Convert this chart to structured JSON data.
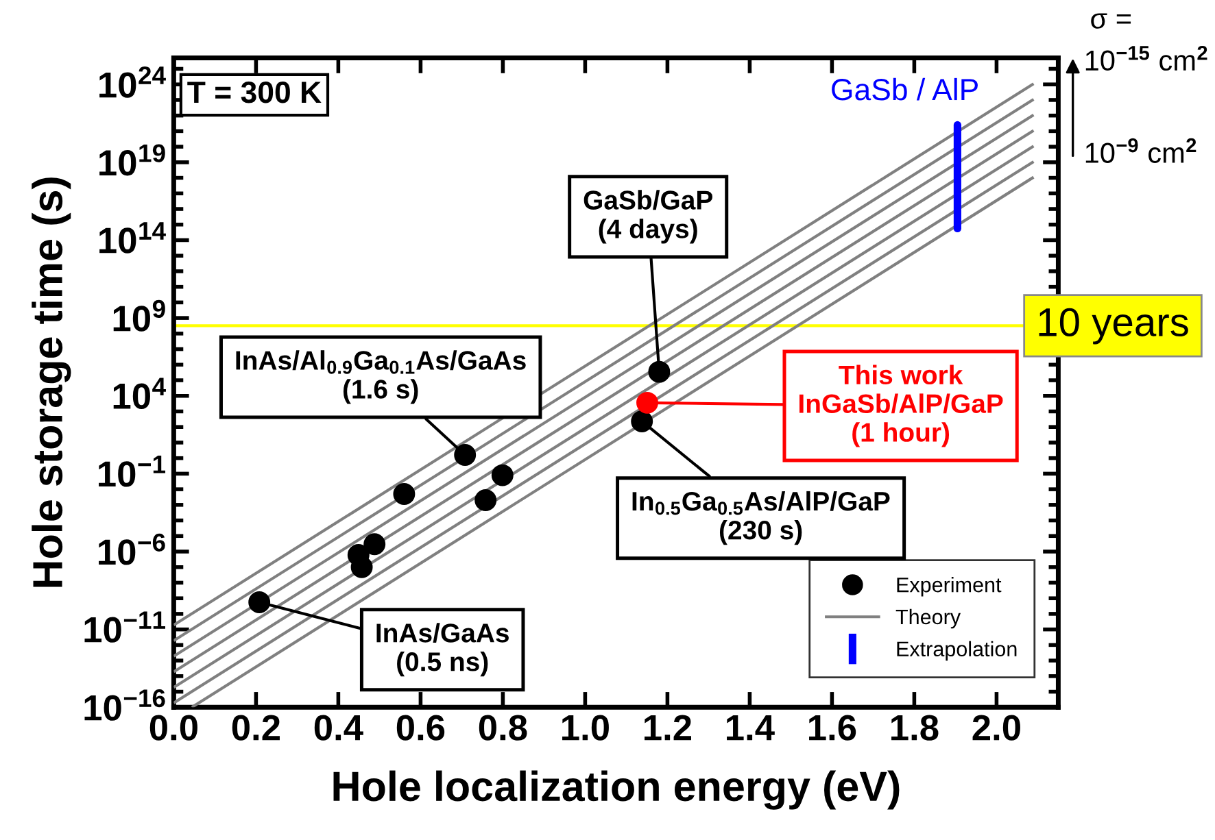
{
  "chart_data": {
    "type": "scatter",
    "xlabel": "Hole localization energy (eV)",
    "ylabel": "Hole storage time (s)",
    "log": "y",
    "xlim": [
      0,
      2.15
    ],
    "ylim": [
      1e-16,
      5e+25
    ],
    "xticks": [
      {
        "value": 0,
        "label": "0.0"
      },
      {
        "value": 0.2,
        "label": "0.2"
      },
      {
        "value": 0.4,
        "label": "0.4"
      },
      {
        "value": 0.6,
        "label": "0.6"
      },
      {
        "value": 0.8,
        "label": "0.8"
      },
      {
        "value": 1.0,
        "label": "1.0"
      },
      {
        "value": 1.2,
        "label": "1.2"
      },
      {
        "value": 1.4,
        "label": "1.4"
      },
      {
        "value": 1.6,
        "label": "1.6"
      },
      {
        "value": 1.8,
        "label": "1.8"
      },
      {
        "value": 2.0,
        "label": "2.0"
      }
    ],
    "yticks": [
      {
        "value": 1e-16,
        "label": "10$^{−16}$"
      },
      {
        "value": 1e-11,
        "label": "10$^{−11}$"
      },
      {
        "value": 1e-06,
        "label": "10$^{−6}$"
      },
      {
        "value": 0.1,
        "label": "10$^{−1}$"
      },
      {
        "value": 10000.0,
        "label": "10$^{4}$"
      },
      {
        "value": 1000000000.0,
        "label": "10$^{9}$"
      },
      {
        "value": 100000000000000.0,
        "label": "10$^{14}$"
      },
      {
        "value": 1e+19,
        "label": "10$^{19}$"
      },
      {
        "value": 1e+24,
        "label": "10$^{24}$"
      }
    ],
    "grid": false,
    "legend": "bottom right",
    "series": [
      {
        "name": "Experiment",
        "marker": "circle",
        "color": "#000000",
        "x": [
          0.208,
          0.449,
          0.457,
          0.488,
          0.56,
          0.708,
          0.758,
          0.799,
          1.138,
          1.151,
          1.18
        ],
        "values": [
          5.6e-10,
          6e-07,
          1e-07,
          3e-06,
          0.005,
          1.6,
          0.002,
          0.08,
          230,
          3600,
          350000.0
        ],
        "colors": [
          "#000000",
          "#000000",
          "#000000",
          "#000000",
          "#000000",
          "#000000",
          "#000000",
          "#000000",
          "#000000",
          "#ff0000",
          "#000000"
        ]
      },
      {
        "name": "Theory",
        "type": "line",
        "color": "#808080",
        "x": [
          0,
          2.09
        ],
        "values": [
          1.9e-11,
          1.1e+24
        ]
      },
      {
        "type": "line",
        "color": "#808080",
        "x": [
          0,
          2.09
        ],
        "values": [
          1.9e-12,
          1.1e+23
        ]
      },
      {
        "type": "line",
        "color": "#808080",
        "x": [
          0,
          2.09
        ],
        "values": [
          1.9e-13,
          1.1e+22
        ]
      },
      {
        "type": "line",
        "color": "#808080",
        "x": [
          0,
          2.09
        ],
        "values": [
          1.9e-14,
          1.1e+21
        ]
      },
      {
        "type": "line",
        "color": "#808080",
        "x": [
          0,
          2.09
        ],
        "values": [
          1.9e-15,
          1.1e+20
        ]
      },
      {
        "type": "line",
        "color": "#808080",
        "x": [
          0,
          2.09
        ],
        "values": [
          1.9e-16,
          1.1e+19
        ]
      },
      {
        "type": "line",
        "color": "#808080",
        "x": [
          0.044,
          2.09
        ],
        "values": [
          1e-16,
          1.1e+18
        ]
      },
      {
        "name": "Extrapolation",
        "type": "line",
        "color": "#0000ff",
        "x": [
          1.905,
          1.905
        ],
        "values": [
          560000000000000.0,
          2.5e+21
        ]
      }
    ],
    "ref_lines": [
      {
        "axis": "y",
        "value": 320000000.0,
        "label": "10 years",
        "color": "#ffff00"
      }
    ],
    "annotations": [
      "T = 300 K",
      {
        "text": "GaSb/GaP\n(4 days)",
        "x": 1.18,
        "y": 350000.0
      },
      {
        "text": "InAs/Al$_{0.9}$Ga$_{0.1}$As/GaAs\n(1.6 s)",
        "x": 0.708,
        "y": 1.6
      },
      {
        "text": "This work\nInGaSb/AlP/GaP\n(1 hour)",
        "x": 1.151,
        "y": 3600
      },
      {
        "text": "In$_{0.5}$Ga$_{0.5}$As/AlP/GaP\n(230 s)",
        "x": 1.138,
        "y": 230
      },
      {
        "text": "InAs/GaAs\n(0.5 ns)",
        "x": 0.208,
        "y": 5.6e-10
      },
      {
        "text": "GaSb / AlP",
        "x": 1.905,
        "y": 2.5e+21
      },
      "σ =",
      "10$^{−15}$ cm$^{2}$",
      "10$^{−9}$ cm$^{2}$"
    ]
  }
}
